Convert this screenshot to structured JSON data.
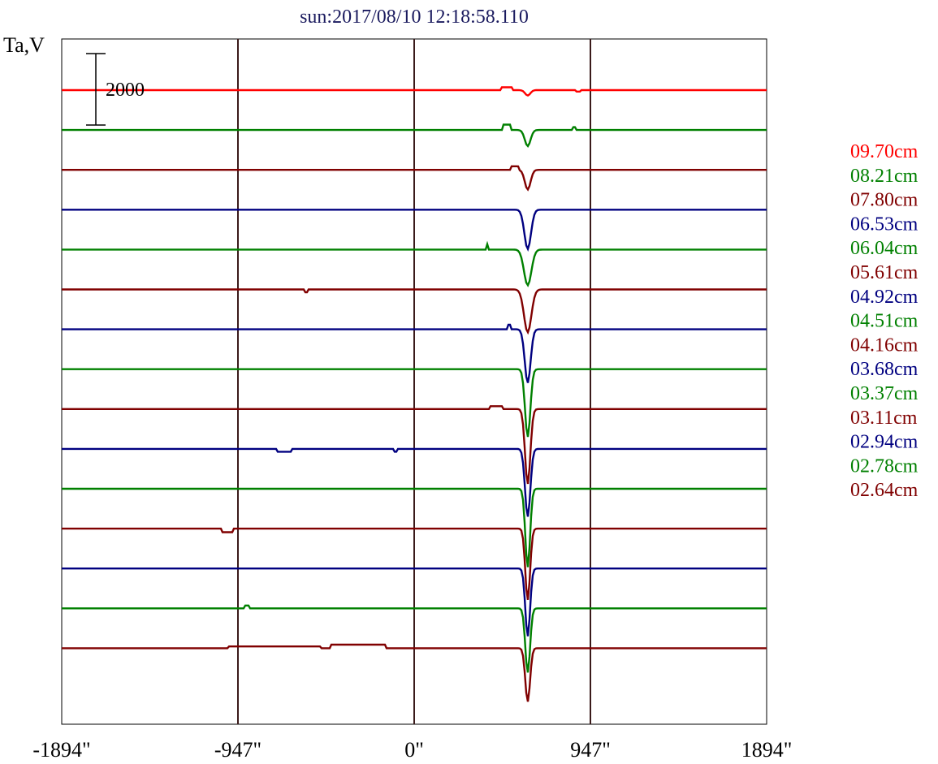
{
  "chart_data": {
    "type": "line",
    "title": "sun:2017/08/10 12:18:58.110",
    "ylabel": "Ta,V",
    "xlabel": "",
    "x_ticks": [
      -1894,
      -947,
      0,
      947,
      1894
    ],
    "x_tick_labels": [
      "-1894\"",
      "-947\"",
      "0\"",
      "947\"",
      "1894\""
    ],
    "xlim": [
      -1894,
      1894
    ],
    "vlines": [
      -947,
      0,
      947
    ],
    "scale_bar": {
      "value": 2000,
      "label": "2000"
    },
    "grid": false,
    "legend_position": "right",
    "series": [
      {
        "name": "09.70cm",
        "color": "#ff0000",
        "dips": [
          {
            "x": 610,
            "depth": 150,
            "width": 20
          }
        ],
        "bumps": [
          {
            "x": 500,
            "h": 80,
            "width": 60
          },
          {
            "x": 880,
            "h": -40,
            "width": 30
          }
        ]
      },
      {
        "name": "08.21cm",
        "color": "#008000",
        "dips": [
          {
            "x": 610,
            "depth": 450,
            "width": 22
          }
        ],
        "bumps": [
          {
            "x": 500,
            "h": 150,
            "width": 40
          },
          {
            "x": 860,
            "h": 80,
            "width": 15
          }
        ]
      },
      {
        "name": "07.80cm",
        "color": "#800000",
        "dips": [
          {
            "x": 610,
            "depth": 550,
            "width": 22
          }
        ],
        "bumps": [
          {
            "x": 540,
            "h": 100,
            "width": 40
          }
        ]
      },
      {
        "name": "06.53cm",
        "color": "#000080",
        "dips": [
          {
            "x": 610,
            "depth": 1100,
            "width": 25
          }
        ],
        "bumps": []
      },
      {
        "name": "06.04cm",
        "color": "#008000",
        "dips": [
          {
            "x": 610,
            "depth": 1000,
            "width": 28
          }
        ],
        "bumps": [
          {
            "x": 390,
            "h": 150,
            "width": 10
          }
        ]
      },
      {
        "name": "05.61cm",
        "color": "#800000",
        "dips": [
          {
            "x": 610,
            "depth": 1200,
            "width": 28
          }
        ],
        "bumps": [
          {
            "x": -580,
            "h": -80,
            "width": 10
          }
        ]
      },
      {
        "name": "04.92cm",
        "color": "#000080",
        "dips": [
          {
            "x": 610,
            "depth": 1500,
            "width": 22
          }
        ],
        "bumps": [
          {
            "x": 510,
            "h": 130,
            "width": 12
          }
        ]
      },
      {
        "name": "04.51cm",
        "color": "#008000",
        "dips": [
          {
            "x": 610,
            "depth": 1900,
            "width": 20
          }
        ],
        "bumps": []
      },
      {
        "name": "04.16cm",
        "color": "#800000",
        "dips": [
          {
            "x": 610,
            "depth": 2100,
            "width": 20
          }
        ],
        "bumps": [
          {
            "x": 440,
            "h": 80,
            "width": 70
          }
        ]
      },
      {
        "name": "03.68cm",
        "color": "#000080",
        "dips": [
          {
            "x": 610,
            "depth": 1900,
            "width": 20
          }
        ],
        "bumps": [
          {
            "x": -700,
            "h": -80,
            "width": 80
          },
          {
            "x": -100,
            "h": -80,
            "width": 15
          }
        ]
      },
      {
        "name": "03.37cm",
        "color": "#008000",
        "dips": [
          {
            "x": 610,
            "depth": 2200,
            "width": 18
          }
        ],
        "bumps": []
      },
      {
        "name": "03.11cm",
        "color": "#800000",
        "dips": [
          {
            "x": 610,
            "depth": 2000,
            "width": 18
          }
        ],
        "bumps": [
          {
            "x": -1000,
            "h": -100,
            "width": 60
          }
        ]
      },
      {
        "name": "02.94cm",
        "color": "#000080",
        "dips": [
          {
            "x": 610,
            "depth": 1900,
            "width": 18
          }
        ],
        "bumps": []
      },
      {
        "name": "02.78cm",
        "color": "#008000",
        "dips": [
          {
            "x": 610,
            "depth": 1800,
            "width": 18
          }
        ],
        "bumps": [
          {
            "x": -900,
            "h": 80,
            "width": 30
          }
        ]
      },
      {
        "name": "02.64cm",
        "color": "#800000",
        "dips": [
          {
            "x": 610,
            "depth": 1500,
            "width": 18
          }
        ],
        "bumps": [
          {
            "x": -750,
            "h": 50,
            "width": 500
          },
          {
            "x": -300,
            "h": 100,
            "width": 300
          }
        ]
      }
    ]
  }
}
